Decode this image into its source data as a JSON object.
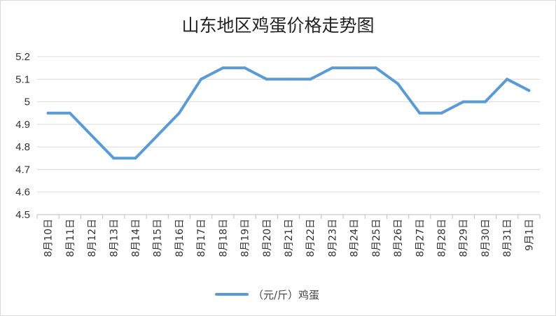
{
  "chart_data": {
    "type": "line",
    "title": "山东地区鸡蛋价格走势图",
    "categories": [
      "8月10日",
      "8月11日",
      "8月12日",
      "8月13日",
      "8月14日",
      "8月15日",
      "8月16日",
      "8月17日",
      "8月18日",
      "8月19日",
      "8月20日",
      "8月21日",
      "8月22日",
      "8月23日",
      "8月24日",
      "8月25日",
      "8月26日",
      "8月27日",
      "8月28日",
      "8月29日",
      "8月30日",
      "8月31日",
      "9月1日"
    ],
    "series": [
      {
        "name": "（元/斤）鸡蛋",
        "color": "#5b9bd5",
        "values": [
          4.95,
          4.95,
          4.85,
          4.75,
          4.75,
          4.85,
          4.95,
          5.1,
          5.15,
          5.15,
          5.1,
          5.1,
          5.1,
          5.15,
          5.15,
          5.15,
          5.08,
          4.95,
          4.95,
          5.0,
          5.0,
          5.1,
          5.05
        ]
      }
    ],
    "ylim": [
      4.5,
      5.2
    ],
    "yticks": [
      "4.5",
      "4.6",
      "4.7",
      "4.8",
      "4.9",
      "5",
      "5.1",
      "5.2"
    ],
    "grid": true,
    "legend_position": "bottom"
  }
}
